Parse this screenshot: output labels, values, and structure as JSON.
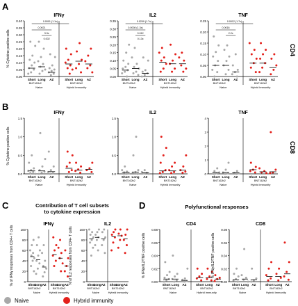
{
  "panel_labels": {
    "A": "A",
    "B": "B",
    "C": "C",
    "D": "D"
  },
  "row_side_labels": {
    "cd4": "CD4",
    "cd8": "CD8"
  },
  "groups": {
    "bnt": "BNT162b2",
    "naive": "Naive",
    "hybrid": "Hybrid immunity",
    "short": "Short",
    "long": "Long",
    "az": "AZ"
  },
  "panel_c_title": [
    "Contribution of T cell subsets",
    "to cytokine expression"
  ],
  "panel_d_title": "Polyfunctional responses",
  "legend": {
    "naive": "Naive",
    "hybrid": "Hybrid immunity"
  },
  "colors": {
    "naive": "#a8a8a8",
    "hybrid": "#e3201b"
  },
  "chart_data": [
    {
      "id": "A-IFNg",
      "type": "scatter",
      "title": "IFNγ",
      "ylabel": "% Cytokine positive cells",
      "yticks": [
        "0.00",
        "0.05",
        "0.10",
        "0.15",
        "0.20",
        "0.25",
        "0.30",
        "0.35",
        "0.40"
      ],
      "ylim": [
        0,
        0.4
      ],
      "pvalues": [
        "0.0001 (1.1x)",
        "0.0021",
        "3.3x",
        "0.002"
      ],
      "series": [
        {
          "group": "Naive Short",
          "values": [
            0.02,
            0.03,
            0.05,
            0.06,
            0.08,
            0.1,
            0.12,
            0.15,
            0.22,
            0.25
          ],
          "median": 0.06
        },
        {
          "group": "Naive Long",
          "values": [
            0.02,
            0.04,
            0.05,
            0.07,
            0.09,
            0.11,
            0.14,
            0.2,
            0.25
          ],
          "median": 0.07
        },
        {
          "group": "Naive AZ",
          "values": [
            0.01,
            0.02,
            0.03,
            0.04,
            0.05,
            0.06,
            0.08,
            0.14,
            0.16
          ],
          "median": 0.03
        },
        {
          "group": "Hybrid Short",
          "values": [
            0.02,
            0.05,
            0.06,
            0.08,
            0.1,
            0.12,
            0.16,
            0.2
          ],
          "median": 0.09
        },
        {
          "group": "Hybrid Long",
          "values": [
            0.03,
            0.06,
            0.09,
            0.12,
            0.18,
            0.24
          ],
          "median": 0.11
        },
        {
          "group": "Hybrid AZ",
          "values": [
            0.03,
            0.06,
            0.08,
            0.11,
            0.15,
            0.2
          ],
          "median": 0.09
        }
      ]
    },
    {
      "id": "A-IL2",
      "type": "scatter",
      "title": "IL2",
      "yticks": [
        "0.00",
        "0.05",
        "0.10",
        "0.15",
        "0.20",
        "0.25",
        "0.30",
        "0.35"
      ],
      "ylim": [
        0,
        0.35
      ],
      "pvalues": [
        "0.0209 (1.7x)",
        "0.0008 (1.3x)",
        "0.012",
        "0.13x"
      ],
      "series": [
        {
          "group": "Naive Short",
          "values": [
            0.0,
            0.02,
            0.03,
            0.04,
            0.05,
            0.06,
            0.08,
            0.1,
            0.15,
            0.2
          ],
          "median": 0.04
        },
        {
          "group": "Naive Long",
          "values": [
            0.01,
            0.02,
            0.03,
            0.05,
            0.06,
            0.08,
            0.12,
            0.18
          ],
          "median": 0.05
        },
        {
          "group": "Naive AZ",
          "values": [
            0.0,
            0.01,
            0.02,
            0.03,
            0.04,
            0.1,
            0.12
          ],
          "median": 0.02
        },
        {
          "group": "Hybrid Short",
          "values": [
            0.03,
            0.05,
            0.08,
            0.1,
            0.12,
            0.15,
            0.18
          ],
          "median": 0.09
        },
        {
          "group": "Hybrid Long",
          "values": [
            0.03,
            0.05,
            0.08,
            0.1,
            0.14,
            0.2
          ],
          "median": 0.08
        },
        {
          "group": "Hybrid AZ",
          "values": [
            0.03,
            0.05,
            0.07,
            0.1,
            0.12,
            0.15
          ],
          "median": 0.08
        }
      ]
    },
    {
      "id": "A-TNF",
      "type": "scatter",
      "title": "TNF",
      "yticks": [
        "0.00",
        "0.05",
        "0.10",
        "0.15",
        "0.20",
        "0.25"
      ],
      "ylim": [
        0,
        0.25
      ],
      "pvalues": [
        "0.0012 (1.7x)",
        "0.0016",
        "2.2x"
      ],
      "series": [
        {
          "group": "Naive Short",
          "values": [
            0.0,
            0.02,
            0.03,
            0.05,
            0.07,
            0.09,
            0.11,
            0.14,
            0.18
          ],
          "median": 0.05
        },
        {
          "group": "Naive Long",
          "values": [
            0.01,
            0.03,
            0.05,
            0.07,
            0.09,
            0.12,
            0.14
          ],
          "median": 0.05
        },
        {
          "group": "Naive AZ",
          "values": [
            0.0,
            0.01,
            0.02,
            0.03,
            0.05,
            0.1
          ],
          "median": 0.02
        },
        {
          "group": "Hybrid Short",
          "values": [
            0.02,
            0.04,
            0.06,
            0.08,
            0.1,
            0.12,
            0.15
          ],
          "median": 0.06
        },
        {
          "group": "Hybrid Long",
          "values": [
            0.02,
            0.04,
            0.06,
            0.08,
            0.1,
            0.12,
            0.15
          ],
          "median": 0.06
        },
        {
          "group": "Hybrid AZ",
          "values": [
            0.01,
            0.03,
            0.05,
            0.08,
            0.1
          ],
          "median": 0.04
        }
      ]
    },
    {
      "id": "B-IFNg",
      "type": "scatter",
      "title": "IFNγ",
      "ylabel": "% Cytokine positive cells",
      "yticks": [
        "0.0",
        "0.5",
        "1.0",
        "1.5"
      ],
      "ylim": [
        0,
        1.5
      ],
      "series": [
        {
          "group": "Naive Short",
          "values": [
            0.0,
            0.02,
            0.05,
            0.08,
            0.1,
            0.15,
            0.3,
            0.5
          ],
          "median": 0.08
        },
        {
          "group": "Naive Long",
          "values": [
            0.0,
            0.03,
            0.06,
            0.1,
            0.2,
            0.4,
            1.1
          ],
          "median": 0.08
        },
        {
          "group": "Naive AZ",
          "values": [
            0.0,
            0.02,
            0.05,
            0.1,
            0.2,
            0.6
          ],
          "median": 0.06
        },
        {
          "group": "Hybrid Short",
          "values": [
            0.05,
            0.1,
            0.2,
            0.3,
            0.5,
            0.6
          ],
          "median": 0.15
        },
        {
          "group": "Hybrid Long",
          "values": [
            0.03,
            0.08,
            0.12,
            0.2,
            0.3
          ],
          "median": 0.1
        },
        {
          "group": "Hybrid AZ",
          "values": [
            0.05,
            0.1,
            0.15,
            0.3
          ],
          "median": 0.12
        }
      ]
    },
    {
      "id": "B-IL2",
      "type": "scatter",
      "title": "IL2",
      "yticks": [
        "0.0",
        "0.5",
        "1.0",
        "1.5"
      ],
      "ylim": [
        0,
        1.5
      ],
      "series": [
        {
          "group": "Naive Short",
          "values": [
            0.0,
            0.02,
            0.04,
            0.06,
            0.1,
            0.2
          ],
          "median": 0.04
        },
        {
          "group": "Naive Long",
          "values": [
            0.0,
            0.03,
            0.05,
            0.1,
            0.5,
            1.0
          ],
          "median": 0.05
        },
        {
          "group": "Naive AZ",
          "values": [
            0.0,
            0.01,
            0.03,
            0.05,
            0.1
          ],
          "median": 0.03
        },
        {
          "group": "Hybrid Short",
          "values": [
            0.02,
            0.05,
            0.1,
            0.3,
            0.5,
            0.7,
            1.0
          ],
          "median": 0.08
        },
        {
          "group": "Hybrid Long",
          "values": [
            0.02,
            0.05,
            0.1,
            0.2,
            0.3
          ],
          "median": 0.08
        },
        {
          "group": "Hybrid AZ",
          "values": [
            0.03,
            0.06,
            0.1,
            0.2,
            0.5
          ],
          "median": 0.1
        }
      ]
    },
    {
      "id": "B-TNF",
      "type": "scatter",
      "title": "TNF",
      "yticks": [
        "0",
        "1",
        "2",
        "3",
        "4"
      ],
      "ylim": [
        0,
        4
      ],
      "series": [
        {
          "group": "Naive Short",
          "values": [
            0.0,
            0.05,
            0.1,
            0.2,
            0.4
          ],
          "median": 0.1
        },
        {
          "group": "Naive Long",
          "values": [
            0.0,
            0.05,
            0.1,
            0.3,
            0.8
          ],
          "median": 0.1
        },
        {
          "group": "Naive AZ",
          "values": [
            0.0,
            0.03,
            0.08,
            0.2
          ],
          "median": 0.08
        },
        {
          "group": "Hybrid Short",
          "values": [
            0.1,
            0.2,
            0.3,
            0.5,
            0.8
          ],
          "median": 0.3
        },
        {
          "group": "Hybrid Long",
          "values": [
            0.05,
            0.1,
            0.2,
            0.4
          ],
          "median": 0.15
        },
        {
          "group": "Hybrid AZ",
          "values": [
            0.05,
            0.1,
            0.3,
            3.0
          ],
          "median": 0.15
        }
      ]
    },
    {
      "id": "C-IFNg",
      "type": "scatter",
      "title": "IFNγ",
      "ylabel": "% of IFNγ responses from CD4+ T cells",
      "yticks": [
        "0",
        "20",
        "40",
        "60",
        "80",
        "100"
      ],
      "ylim": [
        0,
        100
      ],
      "series": [
        {
          "group": "Naive Short",
          "values": [
            20,
            30,
            40,
            45,
            50,
            55,
            60,
            70,
            80
          ],
          "median": 48
        },
        {
          "group": "Naive Long",
          "values": [
            15,
            25,
            35,
            40,
            50,
            60,
            70,
            85
          ],
          "median": 42
        },
        {
          "group": "Naive AZ",
          "values": [
            10,
            18,
            25,
            30,
            40,
            55,
            70
          ],
          "median": 28
        },
        {
          "group": "Hybrid Short",
          "values": [
            30,
            40,
            50,
            60,
            70,
            85
          ],
          "median": 52
        },
        {
          "group": "Hybrid Long",
          "values": [
            20,
            35,
            45,
            55,
            65,
            80
          ],
          "median": 45
        },
        {
          "group": "Hybrid AZ",
          "values": [
            10,
            20,
            30,
            45,
            60
          ],
          "median": 30
        }
      ]
    },
    {
      "id": "C-IL2",
      "type": "scatter",
      "title": "IL2",
      "ylabel": "% of IL2 responses from CD4+ T cells",
      "yticks": [
        "0",
        "20",
        "40",
        "60",
        "80",
        "100"
      ],
      "ylim": [
        0,
        100
      ],
      "series": [
        {
          "group": "Naive Short",
          "values": [
            50,
            65,
            75,
            80,
            85,
            90,
            95,
            100
          ],
          "median": 82
        },
        {
          "group": "Naive Long",
          "values": [
            60,
            70,
            80,
            85,
            90,
            95,
            100
          ],
          "median": 85
        },
        {
          "group": "Naive AZ",
          "values": [
            55,
            70,
            80,
            85,
            95,
            100
          ],
          "median": 82
        },
        {
          "group": "Hybrid Short",
          "values": [
            60,
            75,
            85,
            90,
            95,
            100
          ],
          "median": 86
        },
        {
          "group": "Hybrid Long",
          "values": [
            65,
            80,
            88,
            92,
            100
          ],
          "median": 88
        },
        {
          "group": "Hybrid AZ",
          "values": [
            55,
            70,
            80,
            90,
            100
          ],
          "median": 82
        }
      ]
    },
    {
      "id": "D-CD4",
      "type": "scatter",
      "title": "CD4",
      "ylabel": "% IFNγ/IL2/TNF positive cells",
      "yticks": [
        "0.00",
        "0.02",
        "0.04",
        "0.06",
        "0.08"
      ],
      "ylim": [
        0,
        0.08
      ],
      "series": [
        {
          "group": "Naive Short",
          "values": [
            0.0,
            0.002,
            0.004,
            0.006,
            0.01,
            0.015,
            0.03
          ],
          "median": 0.004
        },
        {
          "group": "Naive Long",
          "values": [
            0.0,
            0.002,
            0.004,
            0.008,
            0.012,
            0.04
          ],
          "median": 0.004
        },
        {
          "group": "Naive AZ",
          "values": [
            0.0,
            0.001,
            0.003,
            0.005,
            0.02
          ],
          "median": 0.002
        },
        {
          "group": "Hybrid Short",
          "values": [
            0.002,
            0.005,
            0.008,
            0.012,
            0.02
          ],
          "median": 0.006
        },
        {
          "group": "Hybrid Long",
          "values": [
            0.002,
            0.004,
            0.008,
            0.015,
            0.02
          ],
          "median": 0.006
        },
        {
          "group": "Hybrid AZ",
          "values": [
            0.001,
            0.004,
            0.006,
            0.01
          ],
          "median": 0.004
        }
      ]
    },
    {
      "id": "D-CD8",
      "type": "scatter",
      "title": "CD8",
      "ylabel": "% IFNγ/IL2/TNF positive cells",
      "yticks": [
        "0.00",
        "0.02",
        "0.04",
        "0.06",
        "0.08"
      ],
      "ylim": [
        0,
        0.08
      ],
      "series": [
        {
          "group": "Naive Short",
          "values": [
            0.0,
            0.002,
            0.004,
            0.008,
            0.012,
            0.02
          ],
          "median": 0.003
        },
        {
          "group": "Naive Long",
          "values": [
            0.0,
            0.003,
            0.006,
            0.01,
            0.05
          ],
          "median": 0.004
        },
        {
          "group": "Naive AZ",
          "values": [
            0.0,
            0.002,
            0.005,
            0.02
          ],
          "median": 0.003
        },
        {
          "group": "Hybrid Short",
          "values": [
            0.002,
            0.005,
            0.01,
            0.02,
            0.03
          ],
          "median": 0.008
        },
        {
          "group": "Hybrid Long",
          "values": [
            0.002,
            0.006,
            0.012,
            0.02
          ],
          "median": 0.008
        },
        {
          "group": "Hybrid AZ",
          "values": [
            0.003,
            0.008,
            0.015,
            0.03,
            0.06
          ],
          "median": 0.012
        }
      ]
    }
  ]
}
